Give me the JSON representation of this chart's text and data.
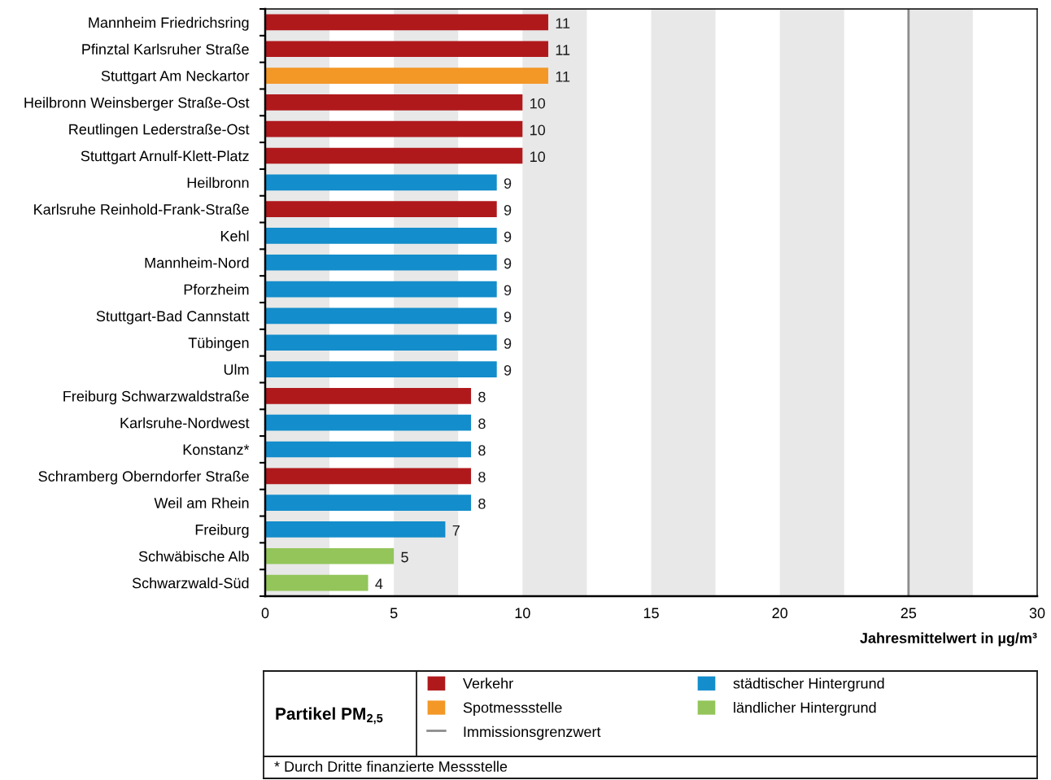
{
  "chart_data": {
    "type": "bar",
    "orientation": "horizontal",
    "stacked": true,
    "categories": [
      "Mannheim Friedrichsring",
      "Pfinztal Karlsruher Straße",
      "Stuttgart Am Neckartor",
      "Heilbronn Weinsberger Straße-Ost",
      "Reutlingen Lederstraße-Ost",
      "Stuttgart Arnulf-Klett-Platz",
      "Heilbronn",
      "Karlsruhe Reinhold-Frank-Straße",
      "Kehl",
      "Mannheim-Nord",
      "Pforzheim",
      "Stuttgart-Bad Cannstatt",
      "Tübingen",
      "Ulm",
      "Freiburg Schwarzwaldstraße",
      "Karlsruhe-Nordwest",
      "Konstanz*",
      "Schramberg Oberndorfer Straße",
      "Weil am Rhein",
      "Freiburg",
      "Schwäbische Alb",
      "Schwarzwald-Süd"
    ],
    "series": [
      {
        "name": "Verkehr",
        "color": "#b0191c",
        "values": [
          11,
          11,
          null,
          10,
          10,
          10,
          null,
          9,
          null,
          null,
          null,
          null,
          null,
          null,
          8,
          null,
          null,
          8,
          null,
          null,
          null,
          null
        ]
      },
      {
        "name": "Spotmessstelle",
        "color": "#f39726",
        "values": [
          null,
          null,
          11,
          null,
          null,
          null,
          null,
          null,
          null,
          null,
          null,
          null,
          null,
          null,
          null,
          null,
          null,
          null,
          null,
          null,
          null,
          null
        ]
      },
      {
        "name": "städtischer Hintergrund",
        "color": "#138dcb",
        "values": [
          null,
          null,
          null,
          null,
          null,
          null,
          9,
          null,
          9,
          9,
          9,
          9,
          9,
          9,
          null,
          8,
          8,
          null,
          8,
          7,
          null,
          null
        ]
      },
      {
        "name": "ländlicher Hintergrund",
        "color": "#93c55a",
        "values": [
          null,
          null,
          null,
          null,
          null,
          null,
          null,
          null,
          null,
          null,
          null,
          null,
          null,
          null,
          null,
          null,
          null,
          null,
          null,
          null,
          5,
          4
        ]
      }
    ],
    "xlabel": "Jahresmittelwert in µg/m³",
    "legend_title": "Partikel PM$_{2,5}$",
    "xlim": [
      0,
      30
    ],
    "xticks": [
      0,
      5,
      10,
      15,
      20,
      25,
      30
    ],
    "ref_lines": [
      {
        "axis": "x",
        "value": 25,
        "label": "Immissionsgrenzwert",
        "color": "#8c8c8c",
        "line_style": "solid"
      }
    ],
    "bands": [
      {
        "axis": "x",
        "from": 0,
        "to": 2.5,
        "color": "#e8e8e8"
      },
      {
        "axis": "x",
        "from": 5,
        "to": 7.5,
        "color": "#e8e8e8"
      },
      {
        "axis": "x",
        "from": 10,
        "to": 12.5,
        "color": "#e8e8e8"
      },
      {
        "axis": "x",
        "from": 15,
        "to": 17.5,
        "color": "#e8e8e8"
      },
      {
        "axis": "x",
        "from": 20,
        "to": 22.5,
        "color": "#e8e8e8"
      },
      {
        "axis": "x",
        "from": 25,
        "to": 27.5,
        "color": "#e8e8e8"
      }
    ],
    "data_labels": true,
    "legend": "bottom",
    "grid": false,
    "annotations": [
      "* Durch Dritte finanzierte Messstelle"
    ]
  }
}
